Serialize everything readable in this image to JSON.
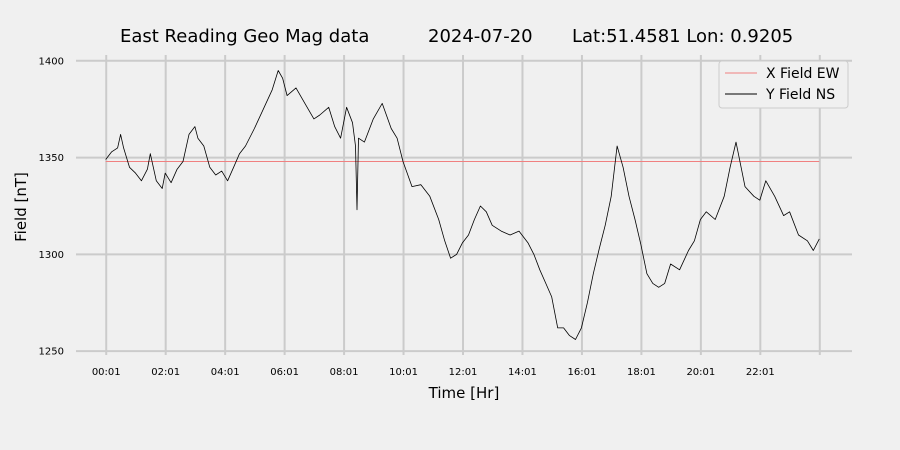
{
  "chart_data": {
    "type": "line",
    "title_parts": [
      "East Reading Geo Mag data",
      "2024-07-20",
      "Lat:51.4581  Lon: 0.9205"
    ],
    "xlabel": "Time  [Hr]",
    "ylabel": "Field  [nT]",
    "x_unit": "hours",
    "xlim": [
      -1,
      25.1
    ],
    "ylim": [
      1248,
      1403
    ],
    "yticks": [
      1250,
      1300,
      1350,
      1400
    ],
    "xticks": [
      0.0167,
      2.0167,
      4.0167,
      6.0167,
      8.0167,
      10.0167,
      12.0167,
      14.0167,
      16.0167,
      18.0167,
      20.0167,
      22.0167,
      24.0167
    ],
    "xtick_labels": [
      "00:01",
      "02:01",
      "04:01",
      "06:01",
      "08:01",
      "10:01",
      "12:01",
      "14:01",
      "16:01",
      "18:01",
      "20:01",
      "22:01",
      ""
    ],
    "grid": true,
    "legend_position": "top-right",
    "series": [
      {
        "name": "X Field EW",
        "color": "#f08080",
        "x": [
          0.0,
          24.0
        ],
        "y": [
          1348,
          1348
        ]
      },
      {
        "name": "Y Field NS",
        "color": "#000000",
        "x": [
          0.0,
          0.2,
          0.4,
          0.5,
          0.6,
          0.8,
          1.0,
          1.2,
          1.4,
          1.5,
          1.7,
          1.9,
          2.0,
          2.2,
          2.4,
          2.6,
          2.8,
          3.0,
          3.1,
          3.3,
          3.5,
          3.7,
          3.9,
          4.1,
          4.3,
          4.5,
          4.7,
          5.0,
          5.3,
          5.6,
          5.8,
          5.95,
          6.1,
          6.4,
          6.7,
          7.0,
          7.2,
          7.5,
          7.7,
          7.9,
          8.1,
          8.3,
          8.4,
          8.45,
          8.5,
          8.7,
          9.0,
          9.3,
          9.6,
          9.8,
          10.0,
          10.3,
          10.6,
          10.9,
          11.2,
          11.4,
          11.6,
          11.8,
          12.0,
          12.2,
          12.4,
          12.6,
          12.8,
          13.0,
          13.3,
          13.6,
          13.9,
          14.2,
          14.4,
          14.6,
          14.8,
          15.0,
          15.2,
          15.4,
          15.6,
          15.8,
          16.0,
          16.2,
          16.4,
          16.6,
          16.8,
          17.0,
          17.2,
          17.4,
          17.6,
          17.8,
          18.0,
          18.2,
          18.4,
          18.6,
          18.8,
          19.0,
          19.3,
          19.6,
          19.8,
          20.0,
          20.2,
          20.5,
          20.8,
          21.0,
          21.2,
          21.5,
          21.8,
          22.0,
          22.2,
          22.5,
          22.8,
          23.0,
          23.3,
          23.6,
          23.8,
          24.0
        ],
        "y": [
          1349,
          1353,
          1355,
          1362,
          1355,
          1345,
          1342,
          1338,
          1344,
          1352,
          1338,
          1334,
          1342,
          1337,
          1344,
          1348,
          1362,
          1366,
          1360,
          1356,
          1345,
          1341,
          1343,
          1338,
          1345,
          1352,
          1356,
          1365,
          1375,
          1385,
          1395,
          1391,
          1382,
          1386,
          1378,
          1370,
          1372,
          1376,
          1366,
          1360,
          1376,
          1368,
          1356,
          1323,
          1360,
          1358,
          1370,
          1378,
          1365,
          1360,
          1348,
          1335,
          1336,
          1330,
          1318,
          1307,
          1298,
          1300,
          1306,
          1310,
          1318,
          1325,
          1322,
          1315,
          1312,
          1310,
          1312,
          1306,
          1300,
          1292,
          1285,
          1278,
          1262,
          1262,
          1258,
          1256,
          1262,
          1275,
          1290,
          1303,
          1315,
          1330,
          1356,
          1345,
          1330,
          1318,
          1305,
          1290,
          1285,
          1283,
          1285,
          1295,
          1292,
          1302,
          1307,
          1318,
          1322,
          1318,
          1330,
          1345,
          1358,
          1335,
          1330,
          1328,
          1338,
          1330,
          1320,
          1322,
          1310,
          1307,
          1302,
          1308
        ]
      }
    ]
  }
}
